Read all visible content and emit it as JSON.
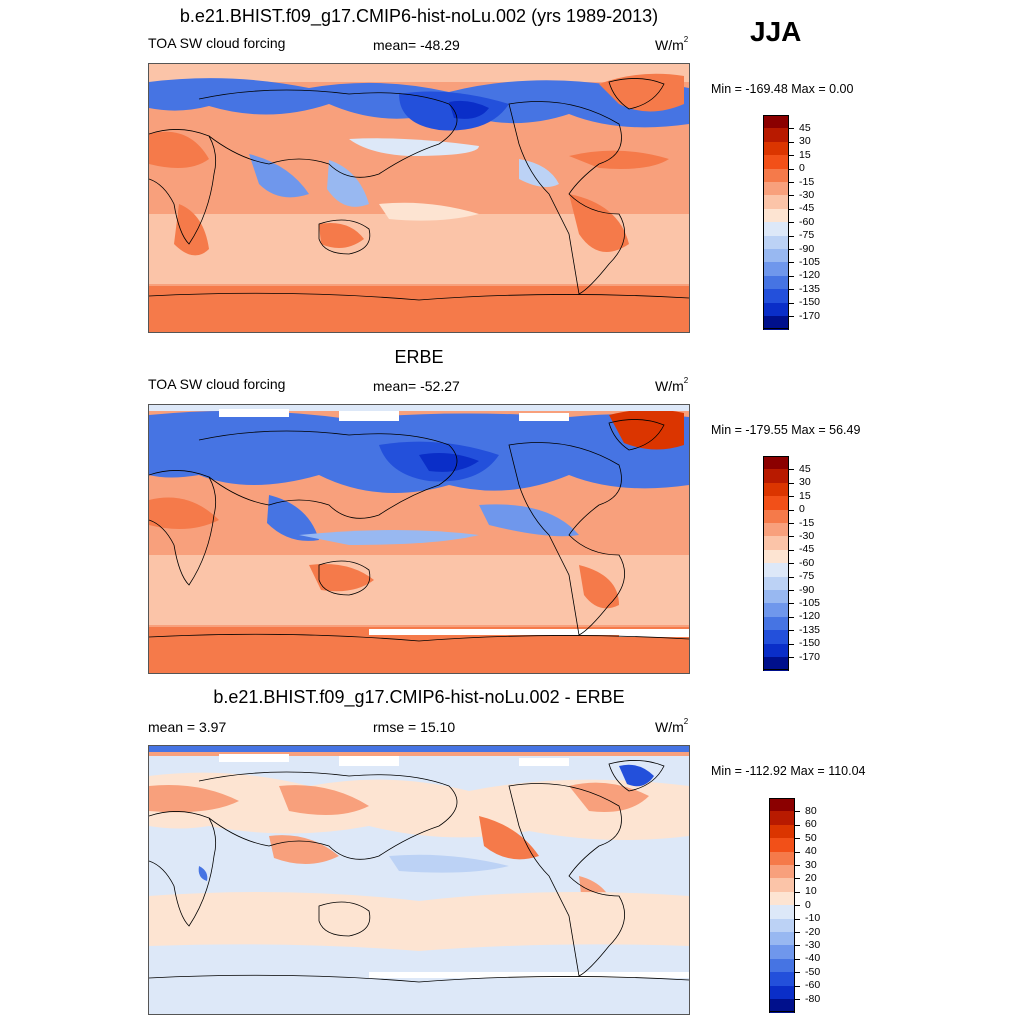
{
  "season": "JJA",
  "units_base": "W/m",
  "units_exp": "2",
  "panels": [
    {
      "title": "b.e21.BHIST.f09_g17.CMIP6-hist-noLu.002 (yrs 1989-2013)",
      "left_label": "TOA SW cloud forcing",
      "center_label": "mean= -48.29",
      "range_label": "Min = -169.48 Max =   0.00"
    },
    {
      "title": "ERBE",
      "left_label": "TOA SW cloud forcing",
      "center_label": "mean= -52.27",
      "range_label": "Min = -179.55 Max =  56.49"
    },
    {
      "title": "b.e21.BHIST.f09_g17.CMIP6-hist-noLu.002 - ERBE",
      "left_label": "mean =   3.97",
      "center_label": "rmse =  15.10",
      "range_label": "Min = -112.92 Max = 110.04"
    }
  ],
  "colorbars": [
    {
      "labels": [
        "45",
        "30",
        "15",
        "0",
        "-15",
        "-30",
        "-45",
        "-60",
        "-75",
        "-90",
        "-105",
        "-120",
        "-135",
        "-150",
        "-170"
      ],
      "colors": [
        "#8b0000",
        "#b81a00",
        "#db3500",
        "#f25018",
        "#f57a4a",
        "#f8a07c",
        "#fbc4a8",
        "#fde4d2",
        "#dde8f8",
        "#bcd2f5",
        "#98b8f1",
        "#6f97ec",
        "#4674e3",
        "#2350db",
        "#0a2ec8",
        "#00108c"
      ]
    },
    {
      "labels": [
        "45",
        "30",
        "15",
        "0",
        "-15",
        "-30",
        "-45",
        "-60",
        "-75",
        "-90",
        "-105",
        "-120",
        "-135",
        "-150",
        "-170"
      ],
      "colors": [
        "#8b0000",
        "#b81a00",
        "#db3500",
        "#f25018",
        "#f57a4a",
        "#f8a07c",
        "#fbc4a8",
        "#fde4d2",
        "#dde8f8",
        "#bcd2f5",
        "#98b8f1",
        "#6f97ec",
        "#4674e3",
        "#2350db",
        "#0a2ec8",
        "#00108c"
      ]
    },
    {
      "labels": [
        "80",
        "60",
        "50",
        "40",
        "30",
        "20",
        "10",
        "0",
        "-10",
        "-20",
        "-30",
        "-40",
        "-50",
        "-60",
        "-80"
      ],
      "colors": [
        "#8b0000",
        "#b81a00",
        "#db3500",
        "#f25018",
        "#f57a4a",
        "#f8a07c",
        "#fbc4a8",
        "#fde4d2",
        "#dde8f8",
        "#bcd2f5",
        "#98b8f1",
        "#6f97ec",
        "#4674e3",
        "#2350db",
        "#0a2ec8",
        "#00108c"
      ]
    }
  ]
}
